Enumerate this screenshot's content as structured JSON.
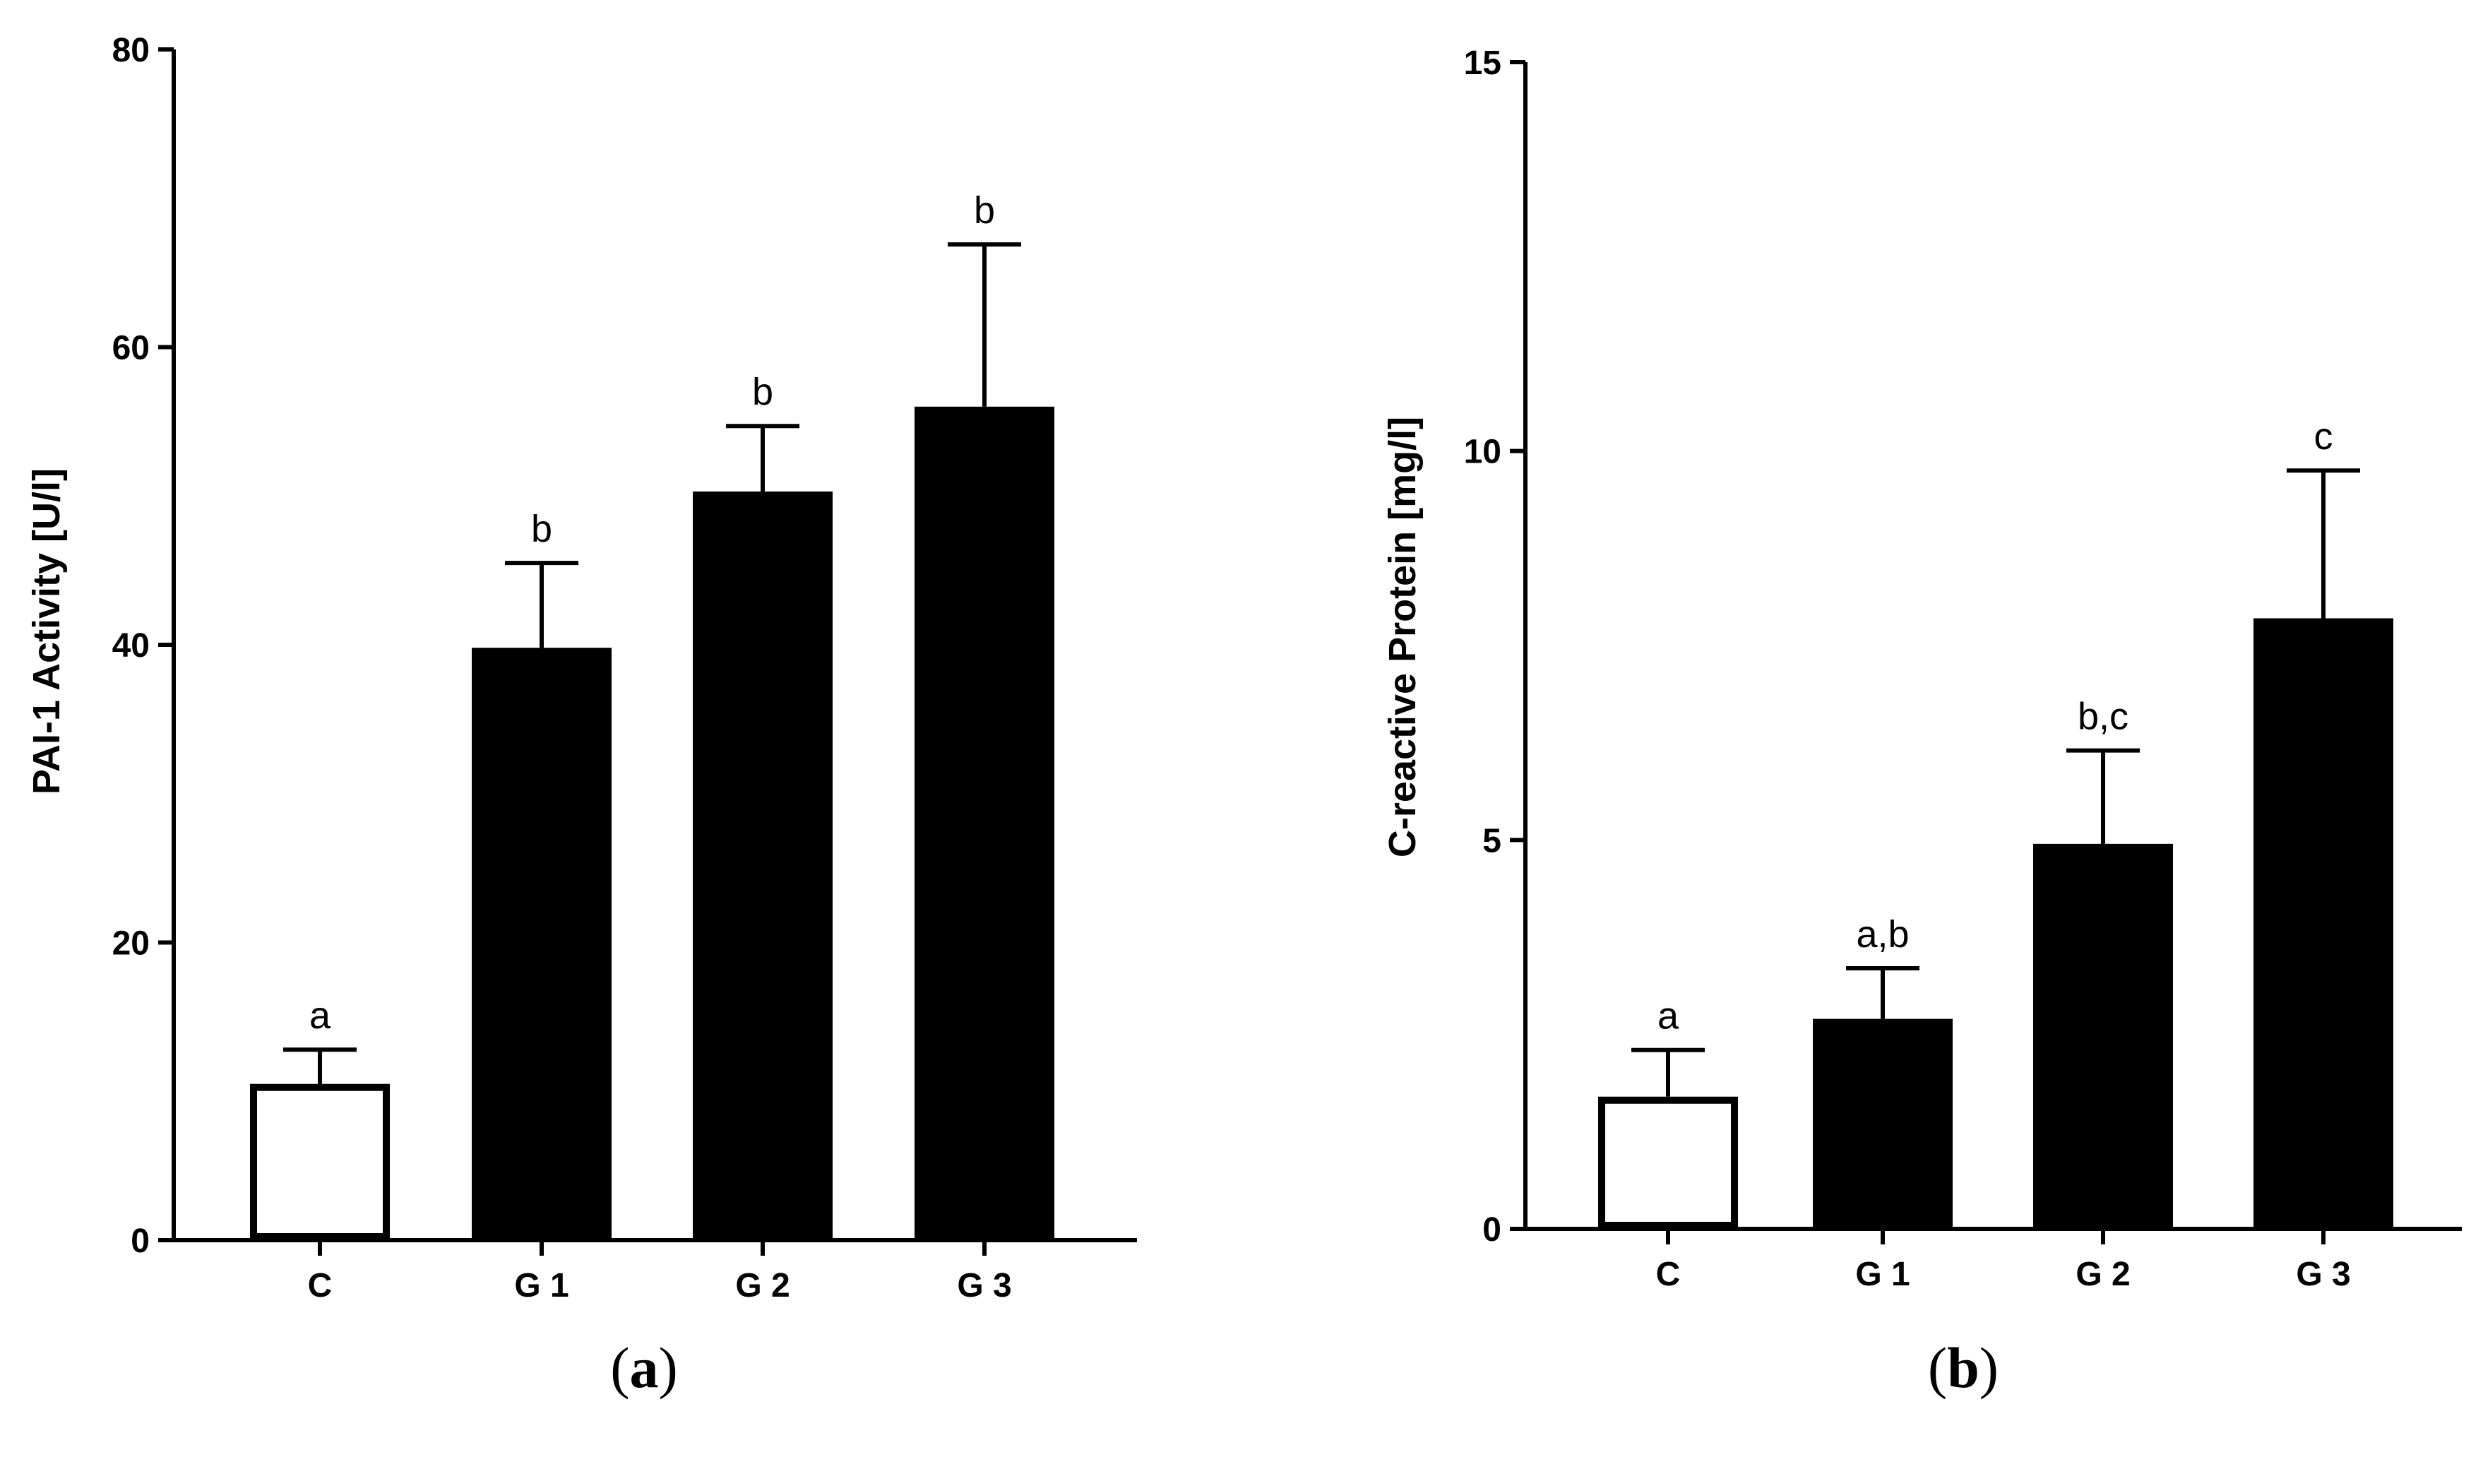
{
  "chart_data": [
    {
      "type": "bar",
      "panel_label": "a",
      "ylabel": "PAI-1 Activity [U/l]",
      "xlabel": "",
      "ylim": [
        0,
        80
      ],
      "yticks": [
        0,
        20,
        40,
        60,
        80
      ],
      "categories": [
        "C",
        "G 1",
        "G 2",
        "G 3"
      ],
      "values": [
        10.5,
        39.8,
        50.3,
        56.0
      ],
      "errors": [
        2.3,
        5.7,
        4.4,
        10.9
      ],
      "significance": [
        "a",
        "b",
        "b",
        "b"
      ],
      "fills": [
        "#ffffff",
        "#000000",
        "#000000",
        "#000000"
      ]
    },
    {
      "type": "bar",
      "panel_label": "b",
      "ylabel": "C-reactive Protein [mg/l]",
      "xlabel": "",
      "ylim": [
        0,
        15
      ],
      "yticks": [
        0,
        5,
        10,
        15
      ],
      "categories": [
        "C",
        "G 1",
        "G 2",
        "G 3"
      ],
      "values": [
        1.7,
        2.7,
        4.95,
        7.85
      ],
      "errors": [
        0.6,
        0.65,
        1.2,
        1.9
      ],
      "significance": [
        "a",
        "a,b",
        "b,c",
        "c"
      ],
      "fills": [
        "#ffffff",
        "#000000",
        "#000000",
        "#000000"
      ]
    }
  ]
}
